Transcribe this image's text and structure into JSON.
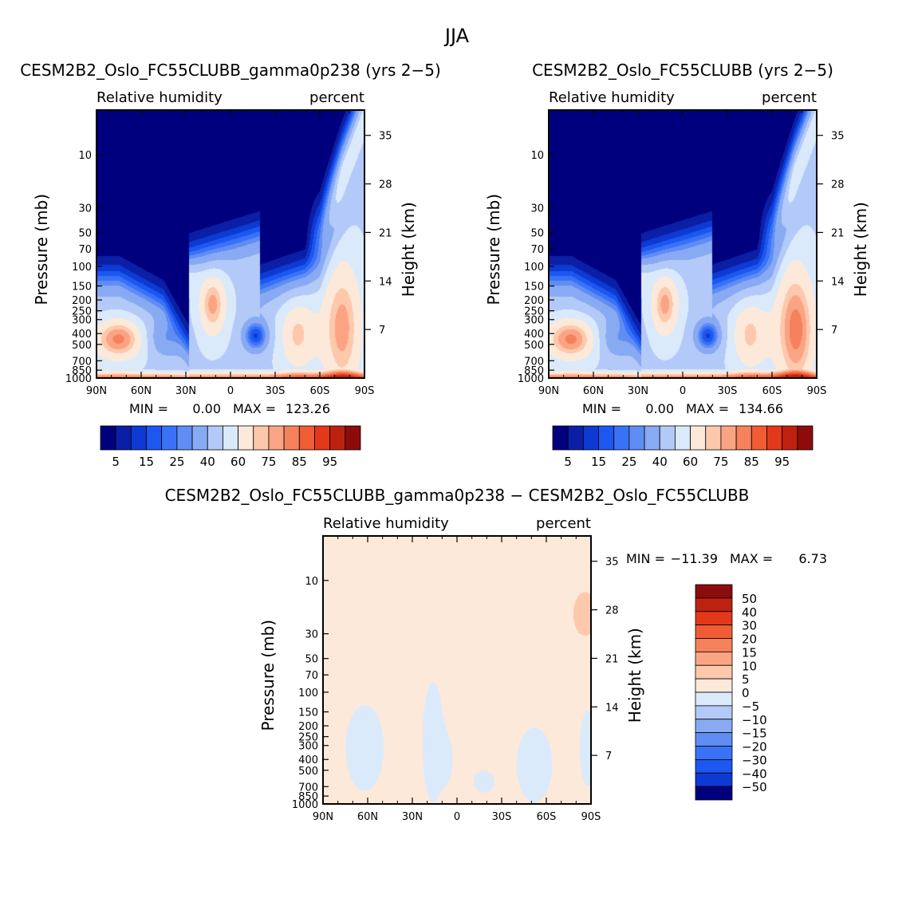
{
  "figure": {
    "title": "JJA"
  },
  "panels": [
    {
      "id": "p1",
      "title": "CESM2B2_Oslo_FC55CLUBB_gamma0p238 (yrs 2−5)",
      "variable": "Relative humidity",
      "units": "percent",
      "stats": {
        "min_label": "MIN =",
        "min_value": "0.00",
        "max_label": "MAX =",
        "max_value": "123.26"
      }
    },
    {
      "id": "p2",
      "title": "CESM2B2_Oslo_FC55CLUBB (yrs 2−5)",
      "variable": "Relative humidity",
      "units": "percent",
      "stats": {
        "min_label": "MIN =",
        "min_value": "0.00",
        "max_label": "MAX =",
        "max_value": "134.66"
      }
    },
    {
      "id": "p3",
      "title": "CESM2B2_Oslo_FC55CLUBB_gamma0p238 − CESM2B2_Oslo_FC55CLUBB",
      "variable": "Relative humidity",
      "units": "percent",
      "stats": {
        "min_label": "MIN =",
        "min_value": "−11.39",
        "max_label": "MAX =",
        "max_value": "6.73"
      }
    }
  ],
  "chart_data": [
    {
      "type": "heatmap",
      "title": "CESM2B2_Oslo_FC55CLUBB_gamma0p238 (yrs 2−5)",
      "xlabel": "",
      "ylabel": "Pressure (mb)",
      "ylabel_right": "Height (km)",
      "x_ticks": [
        "90N",
        "60N",
        "30N",
        "0",
        "30S",
        "60S",
        "90S"
      ],
      "x_range": [
        90,
        -90
      ],
      "y_ticks": [
        "10",
        "30",
        "50",
        "70",
        "100",
        "150",
        "200",
        "250",
        "300",
        "400",
        "500",
        "700",
        "850",
        "1000"
      ],
      "y_scale": "log",
      "y_range": [
        4,
        1000
      ],
      "y2_ticks": [
        "35",
        "28",
        "21",
        "14",
        "7"
      ],
      "min": 0.0,
      "max": 123.26,
      "colorbar_labels": [
        "5",
        "15",
        "25",
        "40",
        "60",
        "75",
        "85",
        "95"
      ],
      "colorbar_levels": [
        5,
        10,
        15,
        20,
        25,
        30,
        40,
        50,
        60,
        70,
        75,
        80,
        85,
        90,
        95
      ]
    },
    {
      "type": "heatmap",
      "title": "CESM2B2_Oslo_FC55CLUBB (yrs 2−5)",
      "xlabel": "",
      "ylabel": "Pressure (mb)",
      "ylabel_right": "Height (km)",
      "x_ticks": [
        "90N",
        "60N",
        "30N",
        "0",
        "30S",
        "60S",
        "90S"
      ],
      "x_range": [
        90,
        -90
      ],
      "y_ticks": [
        "10",
        "30",
        "50",
        "70",
        "100",
        "150",
        "200",
        "250",
        "300",
        "400",
        "500",
        "700",
        "850",
        "1000"
      ],
      "y_scale": "log",
      "y_range": [
        4,
        1000
      ],
      "y2_ticks": [
        "35",
        "28",
        "21",
        "14",
        "7"
      ],
      "min": 0.0,
      "max": 134.66,
      "colorbar_labels": [
        "5",
        "15",
        "25",
        "40",
        "60",
        "75",
        "85",
        "95"
      ],
      "colorbar_levels": [
        5,
        10,
        15,
        20,
        25,
        30,
        40,
        50,
        60,
        70,
        75,
        80,
        85,
        90,
        95
      ]
    },
    {
      "type": "heatmap",
      "title": "CESM2B2_Oslo_FC55CLUBB_gamma0p238 − CESM2B2_Oslo_FC55CLUBB",
      "xlabel": "",
      "ylabel": "Pressure (mb)",
      "ylabel_right": "Height (km)",
      "x_ticks": [
        "90N",
        "60N",
        "30N",
        "0",
        "30S",
        "60S",
        "90S"
      ],
      "x_range": [
        90,
        -90
      ],
      "y_ticks": [
        "10",
        "30",
        "50",
        "70",
        "100",
        "150",
        "200",
        "250",
        "300",
        "400",
        "500",
        "700",
        "850",
        "1000"
      ],
      "y_scale": "log",
      "y_range": [
        4,
        1000
      ],
      "y2_ticks": [
        "35",
        "28",
        "21",
        "14",
        "7"
      ],
      "min": -11.39,
      "max": 6.73,
      "colorbar_labels": [
        "50",
        "40",
        "30",
        "20",
        "15",
        "10",
        "5",
        "0",
        "−5",
        "−10",
        "−15",
        "−20",
        "−30",
        "−40",
        "−50"
      ],
      "colorbar_levels": [
        50,
        40,
        30,
        20,
        15,
        10,
        5,
        0,
        -5,
        -10,
        -15,
        -20,
        -30,
        -40,
        -50
      ]
    }
  ],
  "colors": {
    "abs_scale": [
      "#00007f",
      "#0b1fa6",
      "#0d3ad2",
      "#1c57f0",
      "#3a72f7",
      "#5f8df4",
      "#88aaf3",
      "#b3c9f7",
      "#daeafa",
      "#fde9da",
      "#fdc8ab",
      "#fba483",
      "#f5825d",
      "#f05c34",
      "#e4381a",
      "#bd2210",
      "#8c0c0c"
    ],
    "diff_scale": [
      "#8c0c0c",
      "#bd2210",
      "#e4381a",
      "#f05c34",
      "#f5825d",
      "#fba483",
      "#fdc8ab",
      "#fde9da",
      "#daeafa",
      "#b3c9f7",
      "#88aaf3",
      "#5f8df4",
      "#3a72f7",
      "#1c57f0",
      "#0d3ad2",
      "#00007f"
    ]
  }
}
